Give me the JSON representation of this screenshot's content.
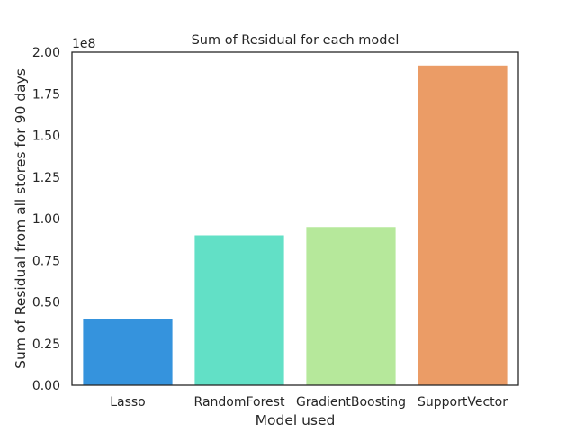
{
  "chart_data": {
    "type": "bar",
    "title": "Sum of Residual for each model",
    "xlabel": "Model used",
    "ylabel": "Sum of Residual from all stores for 90 days",
    "offset_label": "1e8",
    "categories": [
      "Lasso",
      "RandomForest",
      "GradientBoosting",
      "SupportVector"
    ],
    "values": [
      40000000,
      90000000,
      95000000,
      192000000
    ],
    "colors": [
      "#3593dd",
      "#62e0c6",
      "#b6e89b",
      "#eb9c66"
    ],
    "ylim": [
      0,
      200000000
    ],
    "yticks": [
      {
        "value": 0,
        "label": "0.00"
      },
      {
        "value": 25000000,
        "label": "0.25"
      },
      {
        "value": 50000000,
        "label": "0.50"
      },
      {
        "value": 75000000,
        "label": "0.75"
      },
      {
        "value": 100000000,
        "label": "1.00"
      },
      {
        "value": 125000000,
        "label": "1.25"
      },
      {
        "value": 150000000,
        "label": "1.50"
      },
      {
        "value": 175000000,
        "label": "1.75"
      },
      {
        "value": 200000000,
        "label": "2.00"
      }
    ],
    "grid": false,
    "legend": "none"
  }
}
